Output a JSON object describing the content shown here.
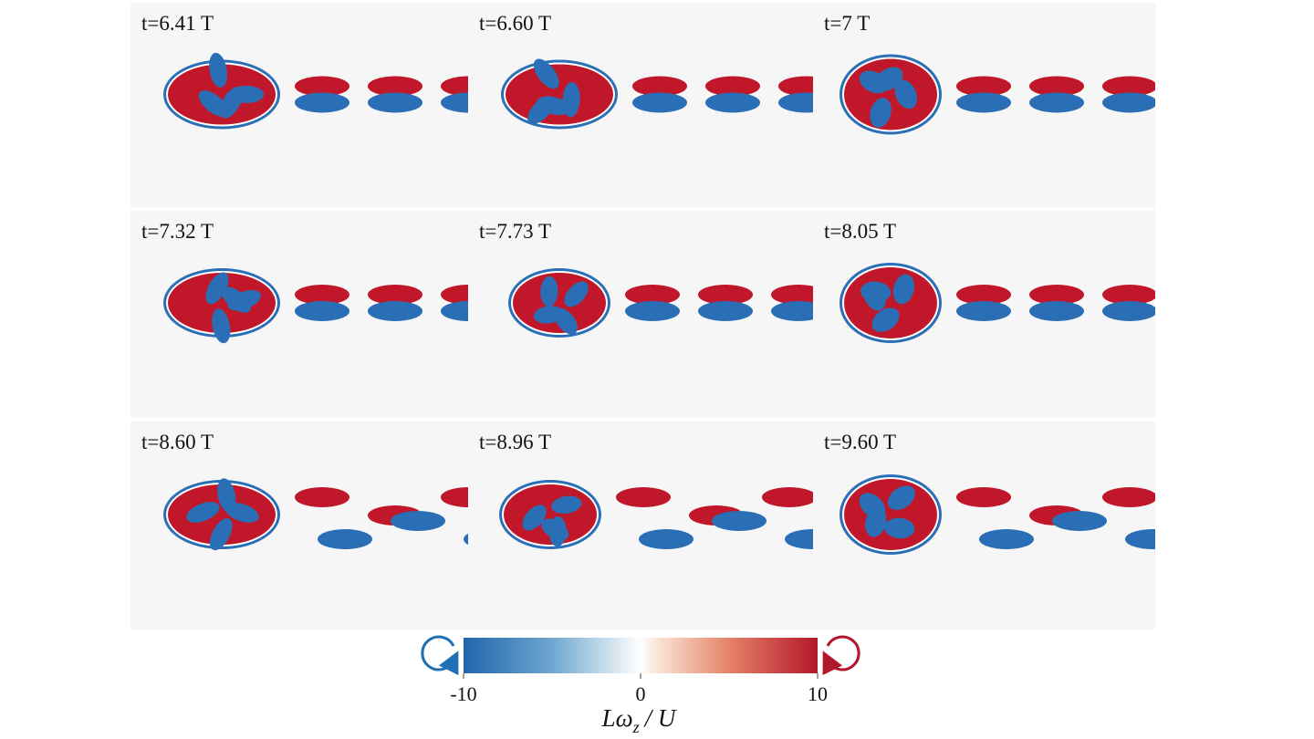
{
  "panels": [
    {
      "label": "t=6.41 T"
    },
    {
      "label": "t=6.60 T"
    },
    {
      "label": "t=7 T"
    },
    {
      "label": "t=7.32 T"
    },
    {
      "label": "t=7.73 T"
    },
    {
      "label": "t=8.05 T"
    },
    {
      "label": "t=8.60 T"
    },
    {
      "label": "t=8.96 T"
    },
    {
      "label": "t=9.60 T"
    }
  ],
  "colorbar": {
    "lim": [
      -10,
      10
    ],
    "ticks": [
      -10,
      0,
      10
    ],
    "label": "Lω",
    "label_sub": "z",
    "label_suffix": "/ U"
  }
}
